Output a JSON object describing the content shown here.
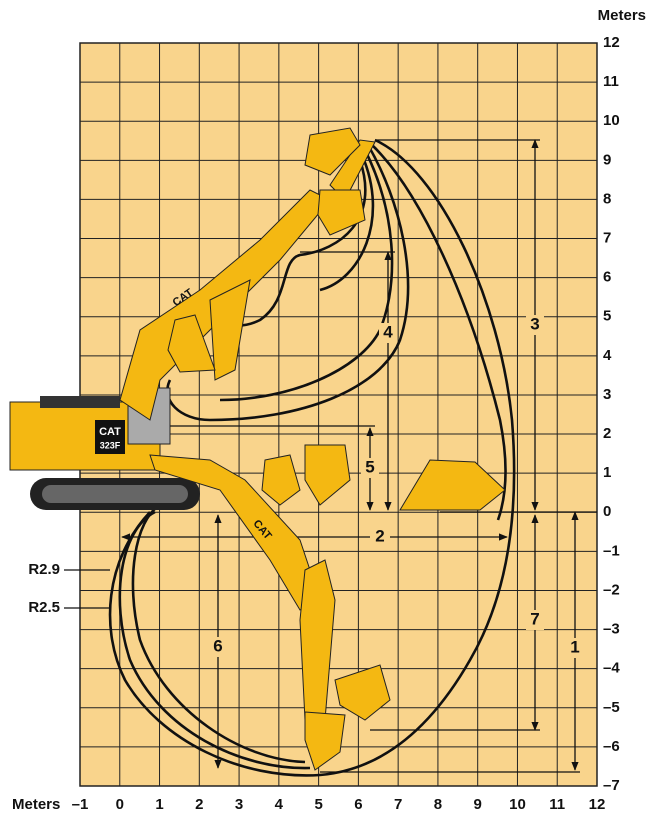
{
  "x_axis": {
    "label": "Meters",
    "ticks": [
      "–1",
      "0",
      "1",
      "2",
      "3",
      "4",
      "5",
      "6",
      "7",
      "8",
      "9",
      "10",
      "11",
      "12"
    ]
  },
  "y_axis": {
    "label": "Meters",
    "ticks": [
      "12",
      "11",
      "10",
      "9",
      "8",
      "7",
      "6",
      "5",
      "4",
      "3",
      "2",
      "1",
      "0",
      "–1",
      "–2",
      "–3",
      "–4",
      "–5",
      "–6",
      "–7"
    ]
  },
  "dimensions": [
    "1",
    "2",
    "3",
    "4",
    "5",
    "6",
    "7"
  ],
  "radii": [
    "R2.9",
    "R2.5"
  ],
  "machine": {
    "brand": "CAT",
    "model": "323F"
  }
}
